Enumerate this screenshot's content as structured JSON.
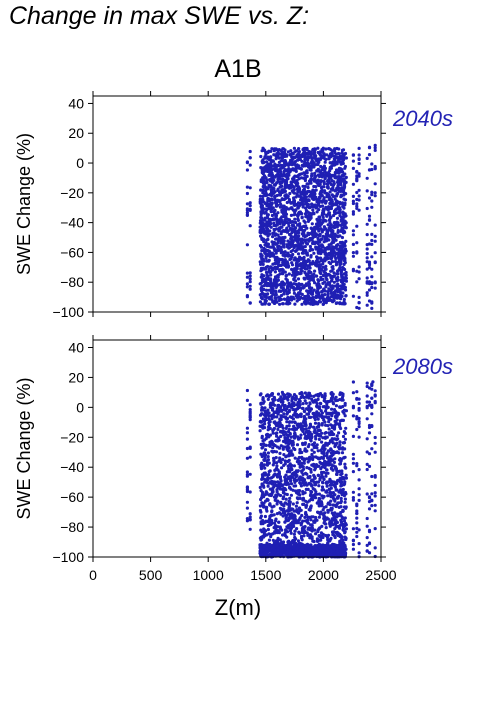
{
  "heading": "Change in max SWE vs. Z:",
  "scenario": "A1B",
  "colors": {
    "points": "#1f1fb4",
    "period_label": "#2323b4",
    "axis": "#000000"
  },
  "chart_data": [
    {
      "type": "scatter",
      "period_label": "2040s",
      "ylabel": "SWE Change (%)",
      "xlabel": "",
      "xlim": [
        0,
        2500
      ],
      "ylim": [
        -100,
        45
      ],
      "yticks": [
        -100,
        -80,
        -60,
        -40,
        -20,
        0,
        20,
        40
      ],
      "ytick_labels": [
        "−100",
        "−80",
        "−60",
        "−40",
        "−20",
        "0",
        "20",
        "40"
      ],
      "xticks": [
        0,
        500,
        1000,
        1500,
        2000,
        2500
      ],
      "xtick_labels": [],
      "grid": false,
      "series": [
        {
          "point_extent": {
            "x": [
              1340,
              2450
            ],
            "y": [
              -98,
              12
            ]
          },
          "dense_band": {
            "x": [
              1450,
              2200
            ],
            "y": [
              -95,
              10
            ]
          },
          "sparse_columns_x": [
            1340,
            1365,
            2260,
            2290,
            2310,
            2380,
            2400,
            2420,
            2450
          ]
        }
      ]
    },
    {
      "type": "scatter",
      "period_label": "2080s",
      "ylabel": "SWE Change (%)",
      "xlabel": "Z(m)",
      "xlim": [
        0,
        2500
      ],
      "ylim": [
        -100,
        45
      ],
      "yticks": [
        -100,
        -80,
        -60,
        -40,
        -20,
        0,
        20,
        40
      ],
      "ytick_labels": [
        "−100",
        "−80",
        "−60",
        "−40",
        "−20",
        "0",
        "20",
        "40"
      ],
      "xticks": [
        0,
        500,
        1000,
        1500,
        2000,
        2500
      ],
      "xtick_labels": [
        "0",
        "500",
        "1000",
        "1500",
        "2000",
        "2500"
      ],
      "grid": false,
      "series": [
        {
          "point_extent": {
            "x": [
              1340,
              2450
            ],
            "y": [
              -100,
              17
            ]
          },
          "dense_band": {
            "x": [
              1450,
              2200
            ],
            "y": [
              -100,
              10
            ]
          },
          "sparse_columns_x": [
            1340,
            1365,
            2260,
            2290,
            2310,
            2380,
            2400,
            2420,
            2450
          ]
        }
      ]
    }
  ]
}
